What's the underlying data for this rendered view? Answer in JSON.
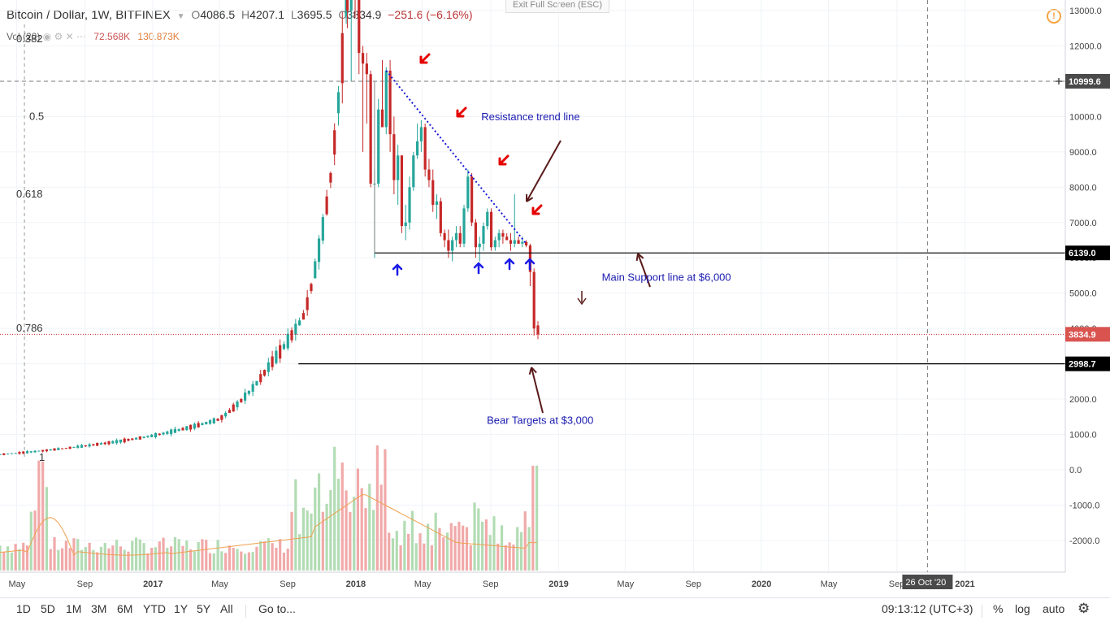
{
  "header": {
    "symbol": "Bitcoin / Dollar, 1W, BITFINEX",
    "open_label": "O",
    "open": "4086.5",
    "high_label": "H",
    "high": "4207.1",
    "low_label": "L",
    "low": "3695.5",
    "close_label": "C",
    "close": "3834.9",
    "change": "−251.6 (−6.16%)"
  },
  "volume_legend": {
    "label": "Vol (20)",
    "v1": "72.568K",
    "v2": "130.873K"
  },
  "exit_fullscreen": "Exit Full Screen (ESC)",
  "toolbar": {
    "timeframes": [
      "1D",
      "5D",
      "1M",
      "3M",
      "6M",
      "YTD",
      "1Y",
      "5Y",
      "All"
    ],
    "goto": "Go to...",
    "clock": "09:13:12 (UTC+3)",
    "percent": "%",
    "log": "log",
    "auto": "auto"
  },
  "colors": {
    "up": "#26a69a",
    "down": "#c62828",
    "vol_up": "#a5d6a7",
    "vol_down": "#ef9a9a",
    "ma": "#f0a050",
    "trend": "#1a1ad8",
    "label_blue": "#1a1ab0",
    "arrow_red": "#e60000",
    "arrow_blue": "#1a1ae8",
    "annot_arrow": "#5a1a1a"
  },
  "chart_data": {
    "type": "candlestick",
    "title": "Bitcoin / Dollar, 1W, BITFINEX",
    "ylim": [
      -2900,
      13300
    ],
    "y_ticks": [
      13000,
      12000,
      11000,
      10000,
      9000,
      8000,
      7000,
      6000,
      5000,
      4000,
      3000,
      2000,
      1000,
      0,
      -1000,
      -2000
    ],
    "y_tick_labels": [
      "13000.0",
      "12000.0",
      "11000.0",
      "10000.0",
      "9000.0",
      "8000.0",
      "7000.0",
      "6000.0",
      "5000.0",
      "4000.0",
      "3000.0",
      "2000.0",
      "1000.0",
      "0.0",
      "-1000.0",
      "-2000.0"
    ],
    "x_ticks": [
      {
        "label": "May",
        "date": "2016-05-01"
      },
      {
        "label": "Sep",
        "date": "2016-09-01"
      },
      {
        "label": "2017",
        "date": "2017-01-01"
      },
      {
        "label": "May",
        "date": "2017-05-01"
      },
      {
        "label": "Sep",
        "date": "2017-09-01"
      },
      {
        "label": "2018",
        "date": "2018-01-01"
      },
      {
        "label": "May",
        "date": "2018-05-01"
      },
      {
        "label": "Sep",
        "date": "2018-09-01"
      },
      {
        "label": "2019",
        "date": "2019-01-01"
      },
      {
        "label": "May",
        "date": "2019-05-01"
      },
      {
        "label": "Sep",
        "date": "2019-09-01"
      },
      {
        "label": "2020",
        "date": "2020-01-01"
      },
      {
        "label": "May",
        "date": "2020-05-01"
      },
      {
        "label": "Sep",
        "date": "2020-09-01"
      },
      {
        "label": "2021",
        "date": "2021-01-01"
      }
    ],
    "x_range": [
      "2016-04-01",
      "2021-07-01"
    ],
    "cursor_date_label": "26 Oct '20",
    "cursor_date": "2020-10-26",
    "crosshair_price_label": "10999.6",
    "crosshair_price": 10999.6,
    "candle_segments": [
      {
        "start": "2016-04-01",
        "end": "2016-12-31",
        "from": 430,
        "to": 960
      },
      {
        "start": "2016-12-31",
        "end": "2017-05-01",
        "from": 960,
        "to": 1430
      },
      {
        "start": "2017-05-01",
        "end": "2017-08-01",
        "from": 1430,
        "to": 3000
      },
      {
        "start": "2017-08-01",
        "end": "2017-10-01",
        "from": 3000,
        "to": 4400
      },
      {
        "start": "2017-10-01",
        "end": "2017-11-15",
        "from": 4400,
        "to": 8000
      },
      {
        "start": "2017-11-15",
        "end": "2017-12-17",
        "from": 8000,
        "to": 13500
      }
    ],
    "candles": [
      {
        "date": "2017-12-17",
        "o": 13500,
        "h": 16000,
        "l": 12500,
        "c": 13000
      },
      {
        "date": "2017-12-24",
        "o": 13000,
        "h": 15000,
        "l": 11000,
        "c": 13800
      },
      {
        "date": "2017-12-31",
        "o": 13800,
        "h": 14500,
        "l": 12800,
        "c": 13500
      },
      {
        "date": "2018-01-07",
        "o": 13500,
        "h": 13600,
        "l": 11200,
        "c": 11800
      },
      {
        "date": "2018-01-14",
        "o": 11800,
        "h": 12000,
        "l": 9000,
        "c": 11500
      },
      {
        "date": "2018-01-21",
        "o": 11500,
        "h": 11800,
        "l": 9800,
        "c": 11200
      },
      {
        "date": "2018-01-28",
        "o": 11200,
        "h": 11300,
        "l": 8000,
        "c": 8100
      },
      {
        "date": "2018-02-04",
        "o": 8100,
        "h": 8500,
        "l": 6000,
        "c": 8100
      },
      {
        "date": "2018-02-11",
        "o": 8100,
        "h": 10500,
        "l": 8000,
        "c": 10200
      },
      {
        "date": "2018-02-18",
        "o": 10200,
        "h": 11600,
        "l": 9800,
        "c": 9700
      },
      {
        "date": "2018-02-25",
        "o": 9700,
        "h": 11400,
        "l": 9500,
        "c": 11300
      },
      {
        "date": "2018-03-04",
        "o": 11300,
        "h": 11600,
        "l": 9000,
        "c": 9500
      },
      {
        "date": "2018-03-11",
        "o": 9500,
        "h": 10000,
        "l": 7800,
        "c": 8200
      },
      {
        "date": "2018-03-18",
        "o": 8200,
        "h": 9200,
        "l": 7500,
        "c": 8900
      },
      {
        "date": "2018-03-25",
        "o": 8900,
        "h": 8900,
        "l": 6700,
        "c": 6900
      },
      {
        "date": "2018-04-01",
        "o": 6900,
        "h": 7500,
        "l": 6500,
        "c": 7000
      },
      {
        "date": "2018-04-08",
        "o": 7000,
        "h": 8300,
        "l": 6800,
        "c": 8000
      },
      {
        "date": "2018-04-15",
        "o": 8000,
        "h": 9000,
        "l": 7900,
        "c": 8900
      },
      {
        "date": "2018-04-22",
        "o": 8900,
        "h": 9800,
        "l": 8800,
        "c": 9300
      },
      {
        "date": "2018-04-29",
        "o": 9300,
        "h": 9900,
        "l": 9000,
        "c": 9700
      },
      {
        "date": "2018-05-06",
        "o": 9700,
        "h": 9800,
        "l": 8300,
        "c": 8500
      },
      {
        "date": "2018-05-13",
        "o": 8500,
        "h": 8800,
        "l": 8000,
        "c": 8200
      },
      {
        "date": "2018-05-20",
        "o": 8200,
        "h": 8500,
        "l": 7300,
        "c": 7500
      },
      {
        "date": "2018-05-27",
        "o": 7500,
        "h": 7800,
        "l": 7100,
        "c": 7600
      },
      {
        "date": "2018-06-03",
        "o": 7600,
        "h": 7700,
        "l": 6600,
        "c": 6700
      },
      {
        "date": "2018-06-10",
        "o": 6700,
        "h": 6800,
        "l": 6300,
        "c": 6500
      },
      {
        "date": "2018-06-17",
        "o": 6500,
        "h": 6800,
        "l": 6000,
        "c": 6200
      },
      {
        "date": "2018-06-24",
        "o": 6200,
        "h": 6600,
        "l": 5900,
        "c": 6500
      },
      {
        "date": "2018-07-01",
        "o": 6500,
        "h": 6900,
        "l": 6300,
        "c": 6700
      },
      {
        "date": "2018-07-08",
        "o": 6700,
        "h": 6900,
        "l": 6300,
        "c": 6400
      },
      {
        "date": "2018-07-15",
        "o": 6400,
        "h": 7500,
        "l": 6300,
        "c": 7400
      },
      {
        "date": "2018-07-22",
        "o": 7400,
        "h": 8500,
        "l": 7300,
        "c": 8300
      },
      {
        "date": "2018-07-29",
        "o": 8300,
        "h": 8400,
        "l": 6900,
        "c": 7000
      },
      {
        "date": "2018-08-05",
        "o": 7000,
        "h": 7100,
        "l": 6000,
        "c": 6300
      },
      {
        "date": "2018-08-12",
        "o": 6300,
        "h": 6600,
        "l": 5900,
        "c": 6400
      },
      {
        "date": "2018-08-19",
        "o": 6400,
        "h": 7000,
        "l": 6200,
        "c": 6900
      },
      {
        "date": "2018-08-26",
        "o": 6900,
        "h": 7400,
        "l": 6800,
        "c": 7300
      },
      {
        "date": "2018-09-02",
        "o": 7300,
        "h": 7400,
        "l": 6200,
        "c": 6300
      },
      {
        "date": "2018-09-09",
        "o": 6300,
        "h": 6600,
        "l": 6200,
        "c": 6500
      },
      {
        "date": "2018-09-16",
        "o": 6500,
        "h": 6800,
        "l": 6300,
        "c": 6700
      },
      {
        "date": "2018-09-23",
        "o": 6700,
        "h": 6800,
        "l": 6400,
        "c": 6600
      },
      {
        "date": "2018-09-30",
        "o": 6600,
        "h": 6700,
        "l": 6500,
        "c": 6500
      },
      {
        "date": "2018-10-07",
        "o": 6500,
        "h": 6700,
        "l": 6200,
        "c": 6400
      },
      {
        "date": "2018-10-14",
        "o": 6400,
        "h": 7800,
        "l": 6300,
        "c": 6500
      },
      {
        "date": "2018-10-21",
        "o": 6500,
        "h": 6600,
        "l": 6400,
        "c": 6400
      },
      {
        "date": "2018-10-28",
        "o": 6400,
        "h": 6600,
        "l": 6300,
        "c": 6450
      },
      {
        "date": "2018-11-04",
        "o": 6450,
        "h": 6500,
        "l": 6300,
        "c": 6350
      },
      {
        "date": "2018-11-11",
        "o": 6350,
        "h": 6400,
        "l": 5200,
        "c": 5600
      },
      {
        "date": "2018-11-18",
        "o": 5600,
        "h": 5700,
        "l": 3800,
        "c": 4000
      },
      {
        "date": "2018-11-25",
        "o": 4086.5,
        "h": 4207.1,
        "l": 3695.5,
        "c": 3834.9
      }
    ],
    "volume_overlay": {
      "description_note": "",
      "ma_label": "Vol (20)"
    },
    "horizontal_lines": [
      {
        "price": 6139.0,
        "label": "6139.0",
        "start": "2018-02-04"
      },
      {
        "price": 2998.7,
        "label": "2998.7",
        "start": "2017-09-20"
      }
    ],
    "last_price": 3834.9,
    "last_price_label": "3834.9",
    "fib_levels": [
      {
        "label": "1",
        "price": 350
      },
      {
        "label": "0.786",
        "price": 4000
      },
      {
        "label": "0.618",
        "price": 7800
      },
      {
        "label": "0.5",
        "price": 10000
      },
      {
        "label": "0.382",
        "price": 12200
      }
    ],
    "trend_line": {
      "from": {
        "date": "2018-02-25",
        "price": 11300
      },
      "to": {
        "date": "2018-11-04",
        "price": 6400
      }
    },
    "annotations": [
      {
        "text": "Resistance trend line",
        "date": "2018-08-15",
        "price": 9900
      },
      {
        "text": "Main Support line at $6,000",
        "date": "2019-03-20",
        "price": 5350
      },
      {
        "text": "Bear Targets at $3,000",
        "date": "2018-08-25",
        "price": 1300
      }
    ]
  }
}
